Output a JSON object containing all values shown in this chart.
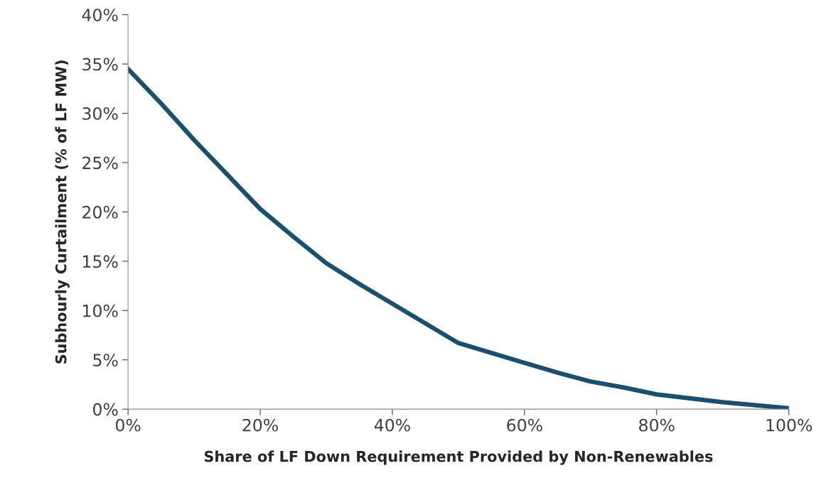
{
  "chart_data": {
    "type": "line",
    "xlabel": "Share of LF Down Requirement Provided by Non-Renewables",
    "ylabel": "Subhourly Curtailment (% of LF MW)",
    "x": [
      0,
      5,
      10,
      15,
      20,
      25,
      30,
      35,
      40,
      45,
      50,
      55,
      60,
      65,
      70,
      75,
      80,
      85,
      90,
      95,
      100
    ],
    "series": [
      {
        "color": "#1c4f6e",
        "values": [
          34.5,
          31.0,
          27.3,
          23.8,
          20.3,
          17.5,
          14.8,
          12.7,
          10.7,
          8.7,
          6.7,
          5.7,
          4.7,
          3.7,
          2.8,
          2.2,
          1.5,
          1.1,
          0.7,
          0.4,
          0.1
        ]
      }
    ],
    "xlim": [
      0,
      100
    ],
    "ylim": [
      0,
      40
    ],
    "xticks": [
      {
        "value": 0,
        "label": "0%"
      },
      {
        "value": 20,
        "label": "20%"
      },
      {
        "value": 40,
        "label": "40%"
      },
      {
        "value": 60,
        "label": "60%"
      },
      {
        "value": 80,
        "label": "80%"
      },
      {
        "value": 100,
        "label": "100%"
      }
    ],
    "yticks": [
      {
        "value": 0,
        "label": "0%"
      },
      {
        "value": 5,
        "label": "5%"
      },
      {
        "value": 10,
        "label": "10%"
      },
      {
        "value": 15,
        "label": "15%"
      },
      {
        "value": 20,
        "label": "20%"
      },
      {
        "value": 25,
        "label": "25%"
      },
      {
        "value": 30,
        "label": "30%"
      },
      {
        "value": 35,
        "label": "35%"
      },
      {
        "value": 40,
        "label": "40%"
      }
    ],
    "grid": false,
    "marker": "none",
    "line_style": "solid"
  }
}
